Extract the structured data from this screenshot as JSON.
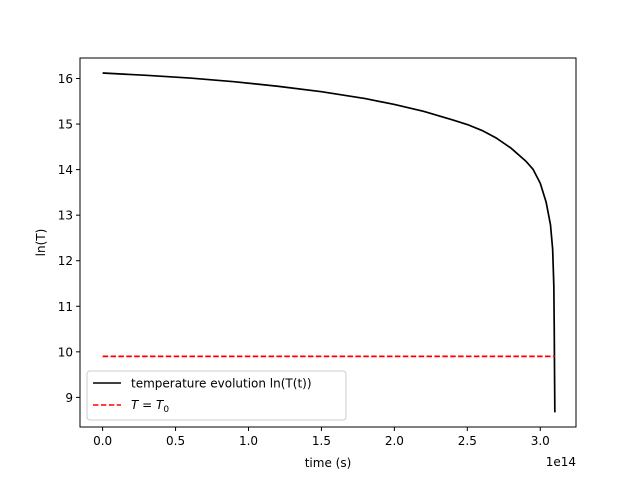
{
  "chart_data": {
    "type": "line",
    "xlabel": "time (s)",
    "ylabel": "ln(T)",
    "x_offset_label": "1e14",
    "x_scale": 100000000000000.0,
    "xlim": [
      -0.155,
      3.245
    ],
    "ylim": [
      8.35,
      16.45
    ],
    "x_ticks": [
      0,
      0.5,
      1.0,
      1.5,
      2.0,
      2.5,
      3.0
    ],
    "x_tick_labels": [
      "0.0",
      "0.5",
      "1.0",
      "1.5",
      "2.0",
      "2.5",
      "3.0"
    ],
    "y_ticks": [
      9,
      10,
      11,
      12,
      13,
      14,
      15,
      16
    ],
    "y_tick_labels": [
      "9",
      "10",
      "11",
      "12",
      "13",
      "14",
      "15",
      "16"
    ],
    "grid": false,
    "legend_position": "lower-left",
    "series": [
      {
        "name": "temperature evolution ln(T(t))",
        "color": "#000000",
        "style": "solid",
        "x": [
          0.0,
          0.3,
          0.6,
          0.9,
          1.2,
          1.5,
          1.8,
          2.0,
          2.2,
          2.4,
          2.5,
          2.6,
          2.7,
          2.8,
          2.9,
          2.95,
          3.0,
          3.04,
          3.07,
          3.085,
          3.093,
          3.096,
          3.098,
          3.1
        ],
        "y": [
          16.12,
          16.07,
          16.01,
          15.93,
          15.83,
          15.71,
          15.56,
          15.43,
          15.28,
          15.09,
          14.99,
          14.86,
          14.69,
          14.47,
          14.19,
          14.01,
          13.7,
          13.29,
          12.79,
          12.25,
          11.45,
          10.45,
          9.5,
          8.67
        ]
      },
      {
        "name_latex": "T = T₀",
        "name_base": "T = T",
        "name_sub": "0",
        "color": "#ff0000",
        "style": "dashed",
        "x": [
          0.0,
          3.1
        ],
        "y": [
          9.9,
          9.9
        ]
      }
    ]
  }
}
